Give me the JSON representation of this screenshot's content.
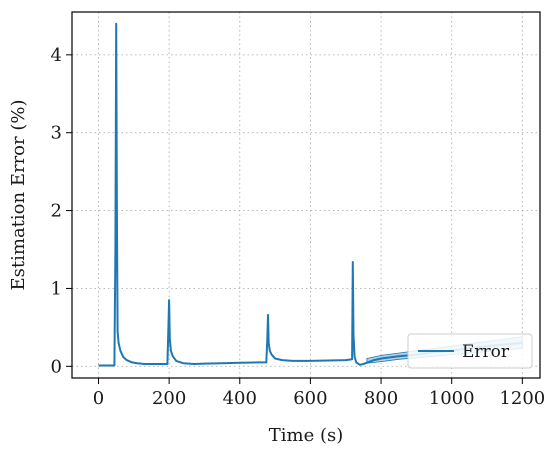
{
  "chart_data": {
    "type": "line",
    "xlabel": "Time (s)",
    "ylabel": "Estimation Error (%)",
    "xlim": [
      -75,
      1250
    ],
    "ylim": [
      -0.15,
      4.55
    ],
    "xticks": [
      0,
      200,
      400,
      600,
      800,
      1000,
      1200
    ],
    "yticks": [
      0,
      1,
      2,
      3,
      4
    ],
    "grid": true,
    "legend_position": "lower-right",
    "series": [
      {
        "name": "Error",
        "color": "#1f77b4",
        "x": [
          0,
          45,
          48,
          50,
          52,
          54,
          57,
          62,
          70,
          80,
          95,
          110,
          130,
          150,
          170,
          195,
          198,
          200,
          202,
          205,
          210,
          220,
          240,
          270,
          300,
          350,
          400,
          450,
          475,
          478,
          480,
          482,
          485,
          490,
          500,
          520,
          550,
          600,
          650,
          700,
          718,
          720,
          722,
          725,
          730,
          740,
          750,
          780,
          800,
          850,
          900,
          950,
          1000,
          1050,
          1100,
          1150,
          1200
        ],
        "y": [
          0.01,
          0.01,
          1.5,
          4.4,
          2.0,
          0.45,
          0.3,
          0.2,
          0.12,
          0.08,
          0.05,
          0.04,
          0.03,
          0.03,
          0.03,
          0.03,
          0.5,
          0.85,
          0.35,
          0.2,
          0.13,
          0.07,
          0.04,
          0.03,
          0.035,
          0.04,
          0.045,
          0.05,
          0.05,
          0.35,
          0.66,
          0.3,
          0.2,
          0.15,
          0.1,
          0.08,
          0.07,
          0.07,
          0.075,
          0.08,
          0.09,
          1.34,
          0.4,
          0.12,
          0.05,
          0.02,
          0.03,
          0.08,
          0.1,
          0.13,
          0.15,
          0.18,
          0.2,
          0.23,
          0.26,
          0.28,
          0.3
        ],
        "band": {
          "x": [
            760,
            800,
            850,
            900,
            950,
            1000,
            1050,
            1100,
            1150,
            1200
          ],
          "low": [
            0.04,
            0.06,
            0.09,
            0.11,
            0.13,
            0.15,
            0.17,
            0.19,
            0.21,
            0.23
          ],
          "high": [
            0.1,
            0.14,
            0.17,
            0.2,
            0.23,
            0.26,
            0.29,
            0.32,
            0.35,
            0.38
          ]
        }
      }
    ]
  }
}
